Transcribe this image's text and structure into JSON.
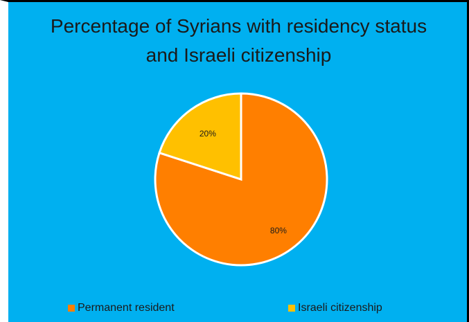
{
  "chart_data": {
    "type": "pie",
    "title_line1": "Percentage of Syrians with residency status",
    "title_line2": "and Israeli citizenship",
    "slices": [
      {
        "label": "Permanent resident",
        "value": 80,
        "display": "80%",
        "color": "#ff7f00"
      },
      {
        "label": "Israeli citizenship",
        "value": 20,
        "display": "20%",
        "color": "#ffc000"
      }
    ],
    "legend_position": "bottom",
    "background_color": "#00b0f0"
  }
}
